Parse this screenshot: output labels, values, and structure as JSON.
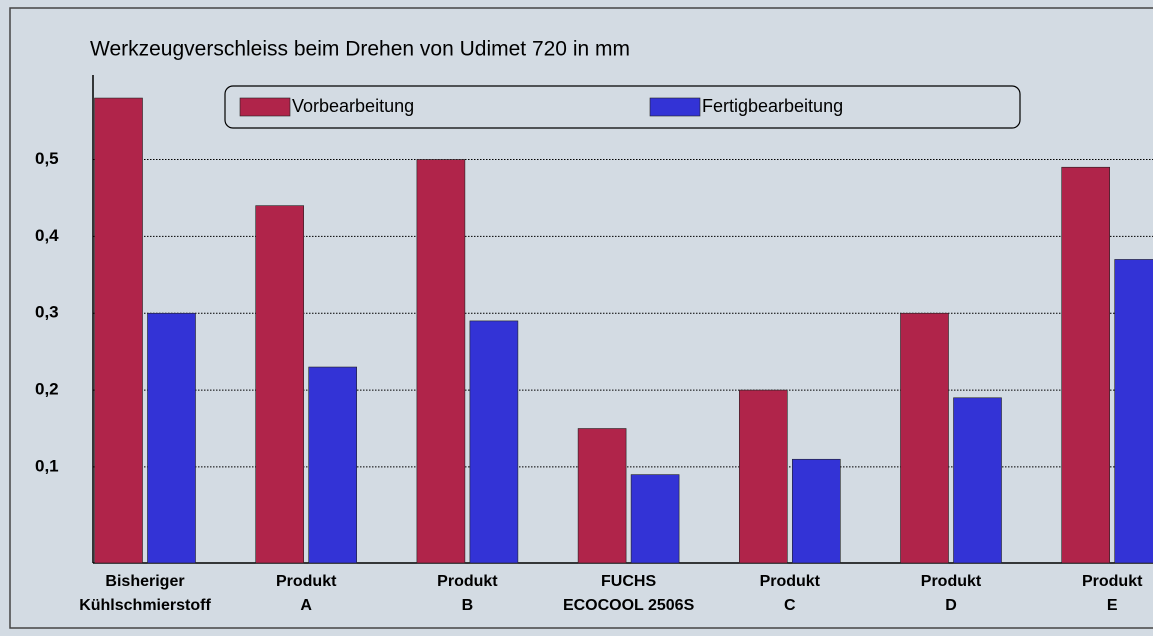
{
  "chart_data": {
    "type": "bar",
    "title": "Werkzeugverschleiss beim Drehen von Udimet 720 in mm",
    "categories": [
      [
        "Bisheriger",
        "Kühlschmierstoff"
      ],
      [
        "Produkt",
        "A"
      ],
      [
        "Produkt",
        "B"
      ],
      [
        "FUCHS",
        "ECOCOOL 2506S"
      ],
      [
        "Produkt",
        "C"
      ],
      [
        "Produkt",
        "D"
      ],
      [
        "Produkt",
        "E"
      ]
    ],
    "series": [
      {
        "name": "Vorbearbeitung",
        "color": "#b0244a",
        "values": [
          0.58,
          0.44,
          0.5,
          0.15,
          0.2,
          0.3,
          0.49
        ]
      },
      {
        "name": "Fertigbearbeitung",
        "color": "#3333d6",
        "values": [
          0.3,
          0.23,
          0.29,
          0.09,
          0.11,
          0.19,
          0.37
        ]
      }
    ],
    "ylim": [
      -0.025,
      0.61
    ],
    "yticks": [
      {
        "value": 0.1,
        "label": "0,1"
      },
      {
        "value": 0.2,
        "label": "0,2"
      },
      {
        "value": 0.3,
        "label": "0,3"
      },
      {
        "value": 0.4,
        "label": "0,4"
      },
      {
        "value": 0.5,
        "label": "0,5"
      }
    ],
    "grid": true,
    "legend": "top"
  }
}
